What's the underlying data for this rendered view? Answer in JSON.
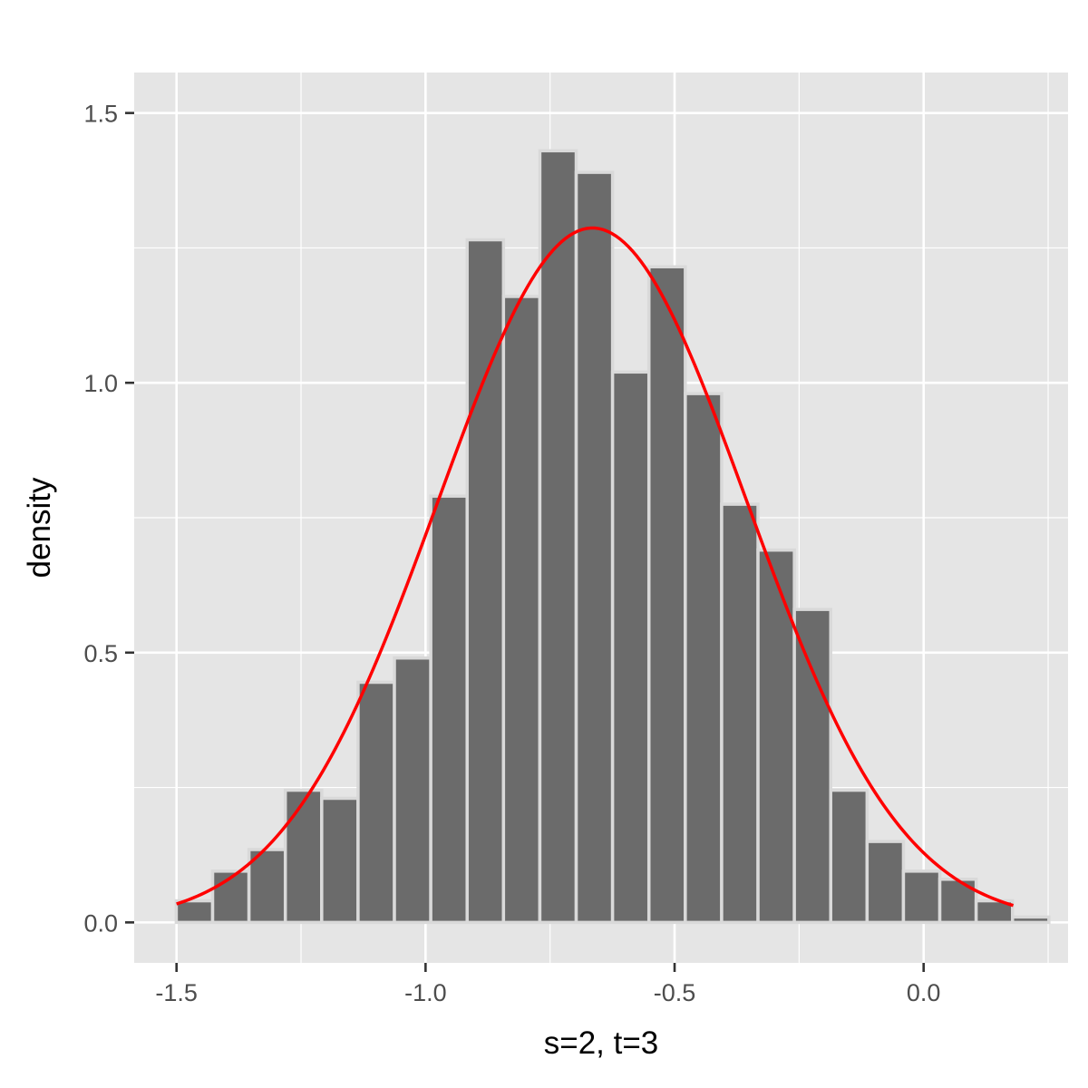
{
  "colors": {
    "panel": "#e5e5e5",
    "grid": "#ffffff",
    "bar_fill": "#6b6b6b",
    "bar_outline": "#d9d9d9",
    "curve": "#ff0000",
    "tick": "#333333"
  },
  "chart_data": {
    "type": "bar",
    "subtype": "histogram-with-density-curve",
    "title": "",
    "xlabel": "s=2, t=3",
    "ylabel": "density",
    "xlim": [
      -1.585,
      0.29
    ],
    "ylim": [
      -0.075,
      1.575
    ],
    "xticks": [
      -1.5,
      -1.0,
      -0.5,
      0.0
    ],
    "xtick_labels": [
      "-1.5",
      "-1.0",
      "-0.5",
      "0.0"
    ],
    "yticks": [
      0.0,
      0.5,
      1.0,
      1.5
    ],
    "ytick_labels": [
      "0.0",
      "0.5",
      "1.0",
      "1.5"
    ],
    "x_minor_gridlines": [
      -1.25,
      -0.75,
      -0.25,
      0.25
    ],
    "y_minor_gridlines": [
      0.25,
      0.75,
      1.25
    ],
    "grid": true,
    "bin_width": 0.073,
    "bin_centers": [
      -1.464,
      -1.391,
      -1.318,
      -1.245,
      -1.172,
      -1.099,
      -1.026,
      -0.953,
      -0.88,
      -0.807,
      -0.734,
      -0.661,
      -0.588,
      -0.515,
      -0.442,
      -0.369,
      -0.296,
      -0.223,
      -0.15,
      -0.077,
      -0.004,
      0.069,
      0.142,
      0.215
    ],
    "values": [
      0.04,
      0.095,
      0.135,
      0.245,
      0.23,
      0.445,
      0.49,
      0.79,
      1.265,
      1.16,
      1.43,
      1.39,
      1.02,
      1.215,
      0.98,
      0.775,
      0.69,
      0.58,
      0.245,
      0.15,
      0.095,
      0.08,
      0.04,
      0.01
    ],
    "curve": {
      "type": "normal-density",
      "mean": -0.665,
      "sd": 0.31,
      "x_range": [
        -1.5,
        0.18
      ]
    }
  }
}
